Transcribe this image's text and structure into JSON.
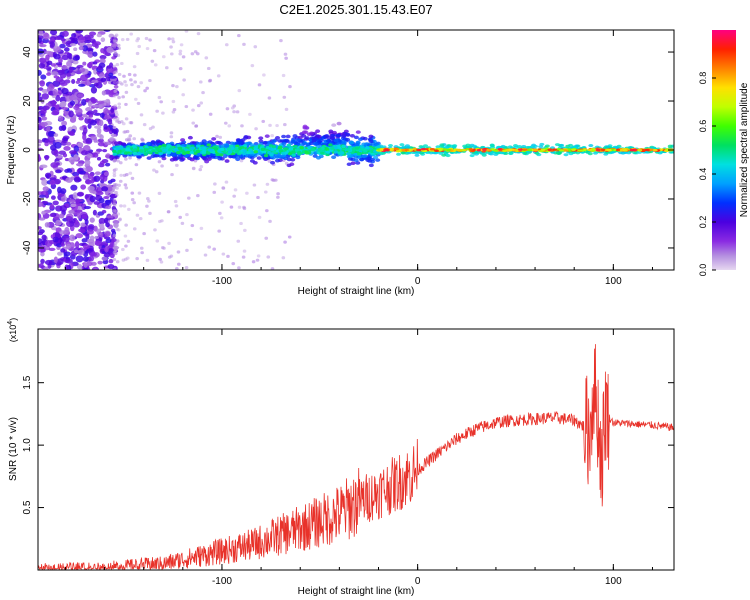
{
  "title": "C2E1.2025.301.15.43.E07",
  "colors": {
    "snr_line": "#e8322a",
    "axis": "#000000",
    "background": "#ffffff"
  },
  "chart_data": [
    {
      "type": "heatmap",
      "xlabel": "Height of straight line (km)",
      "ylabel": "Frequency (Hz)",
      "xlim": [
        -194,
        131
      ],
      "ylim": [
        -49,
        49
      ],
      "xticks": [
        -100,
        0,
        100
      ],
      "yticks": [
        40,
        20,
        0,
        -20,
        -40
      ],
      "colorbar": {
        "label": "Normalized spectral amplitude",
        "range": [
          0,
          1
        ],
        "ticks": [
          0.0,
          0.2,
          0.4,
          0.6,
          0.8
        ],
        "tick_labels": [
          "0.0",
          "0.2",
          "0.4",
          "0.6",
          "0.8"
        ]
      },
      "regions": [
        {
          "name": "noise",
          "x_range": [
            -194,
            -155
          ],
          "amplitude": "low (purple/violet, scattered)"
        },
        {
          "name": "broad-signal",
          "x_range": [
            -155,
            -20
          ],
          "freq_center": 0,
          "freq_spread": [
            -12,
            15
          ],
          "amplitude": "medium (blue/cyan/green)"
        },
        {
          "name": "narrow-carrier",
          "x_range": [
            -20,
            131
          ],
          "freq_center": 0,
          "freq_spread": [
            -2,
            2
          ],
          "amplitude": "high (green/yellow/red)"
        }
      ]
    },
    {
      "type": "line",
      "xlabel": "Height of straight line (km)",
      "ylabel": "SNR (10 * v/v)",
      "ymultiplier": "(x10",
      "ymultiplier_exp": "4",
      "ymultiplier_close": ")",
      "xlim": [
        -194,
        131
      ],
      "ylim": [
        0,
        1.93
      ],
      "xticks": [
        -100,
        0,
        100
      ],
      "yticks": [
        0.5,
        1.0,
        1.5
      ],
      "ytick_labels": [
        "0.5",
        "1.0",
        "1.5"
      ],
      "series": [
        {
          "name": "SNR",
          "x": [
            -194,
            -160,
            -130,
            -115,
            -100,
            -85,
            -70,
            -55,
            -40,
            -30,
            -20,
            -10,
            0,
            10,
            20,
            30,
            40,
            50,
            60,
            70,
            80,
            85,
            88,
            90,
            92,
            94,
            96,
            98,
            100,
            110,
            120,
            131
          ],
          "y": [
            0.01,
            0.02,
            0.05,
            0.1,
            0.15,
            0.2,
            0.28,
            0.36,
            0.45,
            0.55,
            0.62,
            0.7,
            0.8,
            0.93,
            1.05,
            1.13,
            1.18,
            1.2,
            1.21,
            1.22,
            1.2,
            1.15,
            1.1,
            1.5,
            1.25,
            0.85,
            1.3,
            1.22,
            1.18,
            1.17,
            1.16,
            1.14
          ]
        }
      ]
    }
  ]
}
